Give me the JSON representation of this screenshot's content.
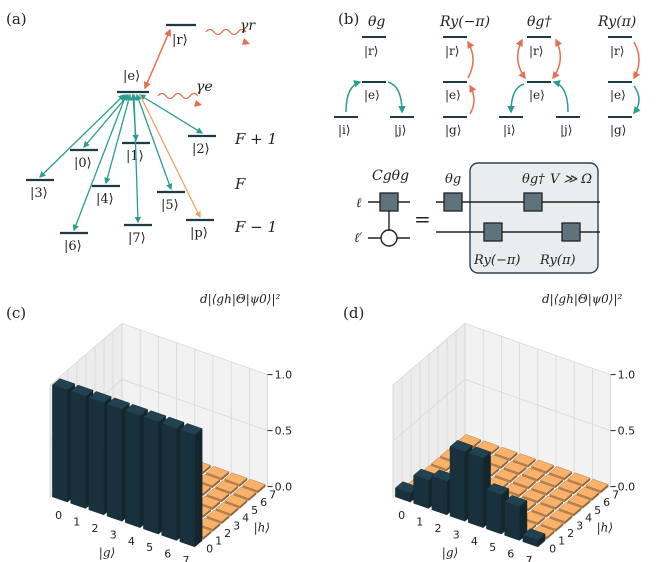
{
  "colors": {
    "teal": "#2a9d8f",
    "orange_red": "#e76f51",
    "orange": "#f4a261",
    "dark_bar": "#1d3a46",
    "floor_bar": "#d99a5b",
    "gate_box": "#5f737c",
    "box_bg": "#e9edef",
    "level": "#1d3a46"
  },
  "panel_a": {
    "label": "(a)",
    "levels": {
      "e": "|e⟩",
      "r": "|r⟩",
      "l0": "|0⟩",
      "l1": "|1⟩",
      "l2": "|2⟩",
      "l3": "|3⟩",
      "l4": "|4⟩",
      "l5": "|5⟩",
      "l6": "|6⟩",
      "l7": "|7⟩",
      "p": "|p⟩"
    },
    "gamma_r": "γr",
    "gamma_e": "γe",
    "manifolds": [
      "F + 1",
      "F",
      "F − 1"
    ]
  },
  "panel_b": {
    "label": "(b)",
    "ops": [
      {
        "title": "θg",
        "top": "|r⟩",
        "mid": "|e⟩",
        "left": "|i⟩",
        "right": "|j⟩"
      },
      {
        "title": "Ry(−π)",
        "top": "|r⟩",
        "mid": "|e⟩",
        "bottom": "|g⟩"
      },
      {
        "title": "θg†",
        "top": "|r⟩",
        "mid": "|e⟩",
        "left": "|i⟩",
        "right": "|j⟩"
      },
      {
        "title": "Ry(π)",
        "top": "|r⟩",
        "mid": "|e⟩",
        "bottom": "|g⟩"
      }
    ],
    "circuit": {
      "controlled_label": "Cgθg",
      "wire_top": "ℓ",
      "wire_bottom": "ℓ′",
      "equals": "=",
      "gates": [
        "θg",
        "θg†",
        "Ry(−π)",
        "Ry(π)"
      ],
      "condition": "V ≫ Ω"
    }
  },
  "panel_c": {
    "label": "(c)",
    "zlabel": "d|⟨gh|Θ|ψ0⟩|²",
    "xlabel": "|g⟩",
    "ylabel": "|h⟩",
    "ticks": [
      "0",
      "1",
      "2",
      "3",
      "4",
      "5",
      "6",
      "7"
    ],
    "zticks": [
      "0.0",
      "0.5",
      "1.0"
    ]
  },
  "panel_d": {
    "label": "(d)",
    "zlabel": "d|⟨gh|Θ|ψ0⟩|²",
    "xlabel": "|g⟩",
    "ylabel": "|h⟩",
    "ticks": [
      "0",
      "1",
      "2",
      "3",
      "4",
      "5",
      "6",
      "7"
    ],
    "zticks": [
      "0.0",
      "0.5",
      "1.0"
    ]
  },
  "chart_data": [
    {
      "type": "bar",
      "title": "",
      "xlabel": "|g⟩",
      "ylabel": "|h⟩",
      "zlabel": "d|⟨gh|Θ|ψ0⟩|²",
      "categories": [
        "0",
        "1",
        "2",
        "3",
        "4",
        "5",
        "6",
        "7"
      ],
      "values": [
        1.0,
        1.0,
        1.0,
        1.0,
        1.0,
        1.0,
        1.0,
        1.0
      ],
      "zlim": [
        0,
        1
      ]
    },
    {
      "type": "bar",
      "title": "",
      "xlabel": "|g⟩",
      "ylabel": "|h⟩",
      "zlabel": "d|⟨gh|Θ|ψ0⟩|²",
      "categories": [
        "0",
        "1",
        "2",
        "3",
        "4",
        "5",
        "6",
        "7"
      ],
      "values": [
        0.08,
        0.25,
        0.3,
        0.62,
        0.62,
        0.35,
        0.3,
        0.06
      ],
      "zlim": [
        0,
        1
      ]
    }
  ]
}
